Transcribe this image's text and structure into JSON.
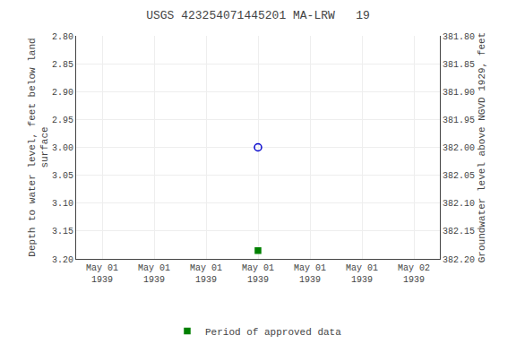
{
  "chart_data": {
    "type": "scatter",
    "title": "USGS 423254071445201 MA-LRW   19",
    "categories": [
      "May 01\n1939",
      "May 01\n1939",
      "May 01\n1939",
      "May 01\n1939",
      "May 01\n1939",
      "May 01\n1939",
      "May 02\n1939"
    ],
    "y_label": "Depth to water level, feet below land\nsurface",
    "y2_label": "Groundwater level above NGVD 1929, feet",
    "ylim": [
      3.2,
      2.8
    ],
    "yticks": [
      {
        "value": 2.8,
        "label": "2.80"
      },
      2.85,
      {
        "value": 2.9,
        "label": "2.90"
      },
      2.95,
      {
        "value": 3.0,
        "label": "3.00"
      },
      3.05,
      {
        "value": 3.1,
        "label": "3.10"
      },
      3.15,
      {
        "value": 3.2,
        "label": "3.20"
      }
    ],
    "y2lim": [
      382.2,
      381.8
    ],
    "y2ticks": [
      {
        "value": 382.2,
        "label": "382.20"
      },
      382.15,
      {
        "value": 382.1,
        "label": "382.10"
      },
      382.05,
      {
        "value": 382.0,
        "label": "382.00"
      },
      381.95,
      {
        "value": 381.9,
        "label": "381.90"
      },
      381.85,
      {
        "value": 381.8,
        "label": "381.80"
      }
    ],
    "grid": true,
    "legend": "bottom",
    "series": [
      {
        "color": "#0000CC",
        "marker": "circle-open",
        "values": [
          null,
          null,
          null,
          3.0,
          null,
          null,
          null
        ]
      },
      {
        "name": "Period of approved data",
        "color": "#008000",
        "marker": "square",
        "values": [
          null,
          null,
          null,
          3.185,
          null,
          null,
          null
        ]
      }
    ]
  }
}
